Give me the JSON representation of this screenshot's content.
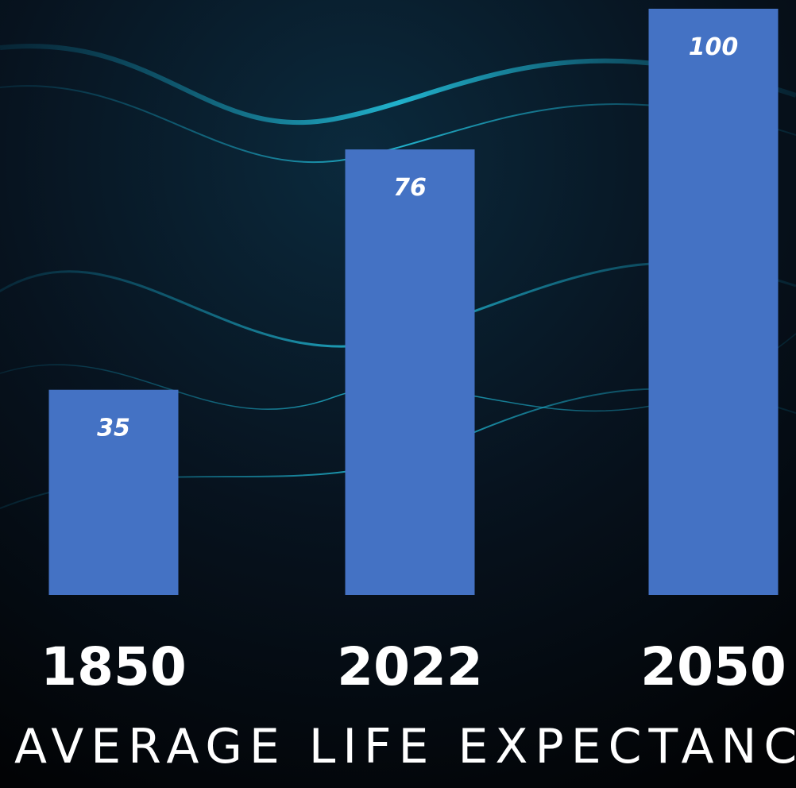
{
  "chart_data": {
    "type": "bar",
    "title": "AVERAGE LIFE EXPECTANCY IN",
    "categories": [
      "1850",
      "2022",
      "2050"
    ],
    "values": [
      35,
      76,
      100
    ],
    "color": "#4472c4"
  }
}
